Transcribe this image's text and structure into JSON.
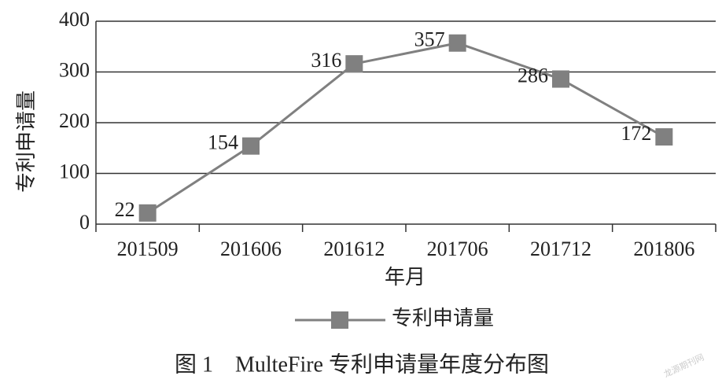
{
  "chart_data": {
    "type": "line",
    "title": "图 1　MulteFire 专利申请量年度分布图",
    "x_label": "年月",
    "y_label": "专利申请量",
    "categories": [
      "201509",
      "201606",
      "201612",
      "201706",
      "201712",
      "201806"
    ],
    "series": [
      {
        "name": "专利申请量",
        "color": "#808080",
        "values": [
          22,
          154,
          316,
          357,
          286,
          172
        ]
      }
    ],
    "ylim": [
      0,
      400
    ],
    "yticks": [
      0,
      100,
      200,
      300,
      400
    ],
    "grid": true,
    "legend": "bottom",
    "watermark": "龙源期刊网"
  }
}
